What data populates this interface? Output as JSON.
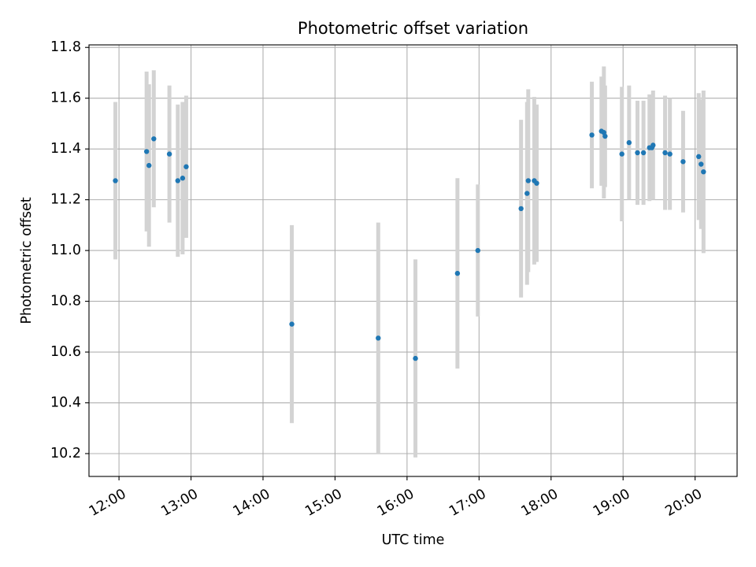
{
  "chart_data": {
    "type": "scatter",
    "title": "Photometric offset variation",
    "xlabel": "UTC time",
    "ylabel": "Photometric offset",
    "xlim": [
      "11:35",
      "20:35"
    ],
    "ylim": [
      10.11,
      11.81
    ],
    "x_ticks": [
      "12:00",
      "13:00",
      "14:00",
      "15:00",
      "16:00",
      "17:00",
      "18:00",
      "19:00",
      "20:00"
    ],
    "y_ticks": [
      "10.2",
      "10.4",
      "10.6",
      "10.8",
      "11.0",
      "11.2",
      "11.4",
      "11.6",
      "11.8"
    ],
    "grid": true,
    "colors": {
      "point": "#1f77b4",
      "errorbar": "#d3d3d3"
    },
    "points": [
      {
        "x": "11:57",
        "y": 11.275,
        "err": 0.31
      },
      {
        "x": "12:23",
        "y": 11.39,
        "err": 0.315
      },
      {
        "x": "12:25",
        "y": 11.335,
        "err": 0.32
      },
      {
        "x": "12:29",
        "y": 11.44,
        "err": 0.27
      },
      {
        "x": "12:42",
        "y": 11.38,
        "err": 0.27
      },
      {
        "x": "12:49",
        "y": 11.275,
        "err": 0.3
      },
      {
        "x": "12:53",
        "y": 11.285,
        "err": 0.3
      },
      {
        "x": "12:56",
        "y": 11.33,
        "err": 0.28
      },
      {
        "x": "14:24",
        "y": 10.71,
        "err": 0.39
      },
      {
        "x": "15:36",
        "y": 10.655,
        "err": 0.455
      },
      {
        "x": "16:07",
        "y": 10.575,
        "err": 0.39
      },
      {
        "x": "16:42",
        "y": 10.91,
        "err": 0.375
      },
      {
        "x": "16:59",
        "y": 11.0,
        "err": 0.26
      },
      {
        "x": "17:35",
        "y": 11.165,
        "err": 0.35
      },
      {
        "x": "17:40",
        "y": 11.225,
        "err": 0.36
      },
      {
        "x": "17:41",
        "y": 11.275,
        "err": 0.36
      },
      {
        "x": "17:46",
        "y": 11.275,
        "err": 0.33
      },
      {
        "x": "17:48",
        "y": 11.265,
        "err": 0.31
      },
      {
        "x": "18:34",
        "y": 11.455,
        "err": 0.21
      },
      {
        "x": "18:42",
        "y": 11.47,
        "err": 0.215
      },
      {
        "x": "18:44",
        "y": 11.465,
        "err": 0.26
      },
      {
        "x": "18:45",
        "y": 11.45,
        "err": 0.2
      },
      {
        "x": "18:59",
        "y": 11.38,
        "err": 0.265
      },
      {
        "x": "19:05",
        "y": 11.425,
        "err": 0.225
      },
      {
        "x": "19:12",
        "y": 11.385,
        "err": 0.205
      },
      {
        "x": "19:17",
        "y": 11.385,
        "err": 0.205
      },
      {
        "x": "19:22",
        "y": 11.405,
        "err": 0.21
      },
      {
        "x": "19:24",
        "y": 11.405,
        "err": 0.205
      },
      {
        "x": "19:25",
        "y": 11.415,
        "err": 0.215
      },
      {
        "x": "19:35",
        "y": 11.385,
        "err": 0.225
      },
      {
        "x": "19:39",
        "y": 11.38,
        "err": 0.22
      },
      {
        "x": "19:50",
        "y": 11.35,
        "err": 0.2
      },
      {
        "x": "20:03",
        "y": 11.37,
        "err": 0.25
      },
      {
        "x": "20:05",
        "y": 11.34,
        "err": 0.255
      },
      {
        "x": "20:07",
        "y": 11.31,
        "err": 0.32
      }
    ]
  }
}
